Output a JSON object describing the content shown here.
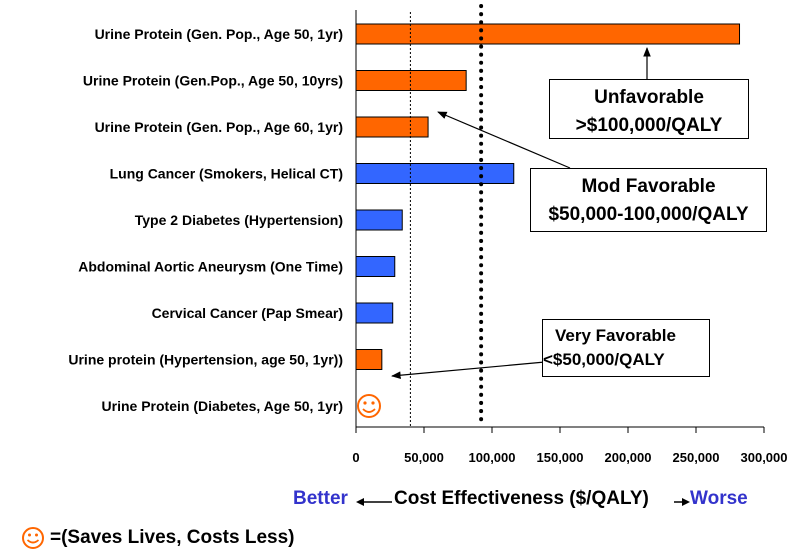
{
  "chart_data": {
    "type": "bar",
    "orientation": "horizontal",
    "title": "",
    "xlabel": "Cost Effectiveness ($/QALY)",
    "xlim": [
      0,
      300000
    ],
    "xticks": [
      0,
      50000,
      100000,
      150000,
      200000,
      250000,
      300000
    ],
    "xtick_labels": [
      "0",
      "50,000",
      "100,000",
      "150,000",
      "200,000",
      "250,000",
      "300,000"
    ],
    "reference_lines": [
      {
        "value": 40000,
        "style": "dotted-thin"
      },
      {
        "value": 92000,
        "style": "dotted-thick"
      }
    ],
    "categories": [
      {
        "label": "Urine Protein (Gen. Pop., Age 50, 1yr)",
        "value": 282000,
        "color": "#ff6600"
      },
      {
        "label": "Urine Protein (Gen.Pop., Age 50, 10yrs)",
        "value": 81000,
        "color": "#ff6600"
      },
      {
        "label": "Urine Protein (Gen. Pop., Age 60, 1yr)",
        "value": 53000,
        "color": "#ff6600"
      },
      {
        "label": "Lung Cancer (Smokers, Helical CT)",
        "value": 116000,
        "color": "#3366ff"
      },
      {
        "label": "Type 2 Diabetes (Hypertension)",
        "value": 34000,
        "color": "#3366ff"
      },
      {
        "label": "Abdominal Aortic Aneurysm (One Time)",
        "value": 28500,
        "color": "#3366ff"
      },
      {
        "label": "Cervical Cancer (Pap Smear)",
        "value": 27000,
        "color": "#3366ff"
      },
      {
        "label": "Urine protein (Hypertension, age 50, 1yr))",
        "value": 19000,
        "color": "#ff6600"
      },
      {
        "label": "Urine Protein (Diabetes, Age 50, 1yr)",
        "value": null,
        "marker": "smiley"
      }
    ],
    "annotations": {
      "unfavorable": {
        "line1": "Unfavorable",
        "line2": ">$100,000/QALY"
      },
      "mod_favorable": {
        "line1": "Mod Favorable",
        "line2": "$50,000-100,000/QALY"
      },
      "very_favorable": {
        "line1": "Very Favorable",
        "line2": "<$50,000/QALY"
      }
    }
  },
  "axis": {
    "better": "Better",
    "title": "Cost Effectiveness ($/QALY)",
    "worse": "Worse"
  },
  "footnote": "=(Saves Lives, Costs Less)",
  "colors": {
    "orange": "#ff6600",
    "blue": "#3366ff",
    "better_worse": "#3333cc",
    "smiley": "#ff6600"
  }
}
